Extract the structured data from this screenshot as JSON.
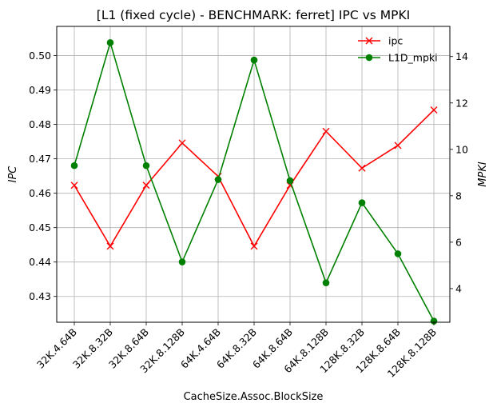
{
  "chart_data": {
    "type": "line",
    "title": "[L1 (fixed cycle) - BENCHMARK: ferret]  IPC vs MPKI",
    "xlabel": "CacheSize.Assoc.BlockSize",
    "ylabel_left": "IPC",
    "ylabel_right": "MPKI",
    "categories": [
      "32K.4.64B",
      "32K.8.32B",
      "32K.8.64B",
      "32K.8.128B",
      "64K.4.64B",
      "64K.8.32B",
      "64K.8.64B",
      "64K.8.128B",
      "128K.8.32B",
      "128K.8.64B",
      "128K.8.128B"
    ],
    "ylim_left": [
      0.4225,
      0.5085
    ],
    "ylim_right": [
      2.55,
      15.3
    ],
    "yticks_left": [
      "0.43",
      "0.44",
      "0.45",
      "0.46",
      "0.47",
      "0.48",
      "0.49",
      "0.50"
    ],
    "yticks_right": [
      "4",
      "6",
      "8",
      "10",
      "12",
      "14"
    ],
    "grid": true,
    "legend_position": "top-right",
    "series": [
      {
        "name": "ipc",
        "axis": "left",
        "color": "#ff0000",
        "marker": "x",
        "values": [
          0.4623,
          0.4446,
          0.4623,
          0.4746,
          0.4649,
          0.4446,
          0.4623,
          0.478,
          0.4673,
          0.4739,
          0.4842
        ]
      },
      {
        "name": "L1D_mpki",
        "axis": "right",
        "color": "#008000",
        "marker": "o",
        "values": [
          9.3,
          14.6,
          9.3,
          5.15,
          8.7,
          13.85,
          8.65,
          4.25,
          7.7,
          5.5,
          2.6
        ]
      }
    ]
  }
}
